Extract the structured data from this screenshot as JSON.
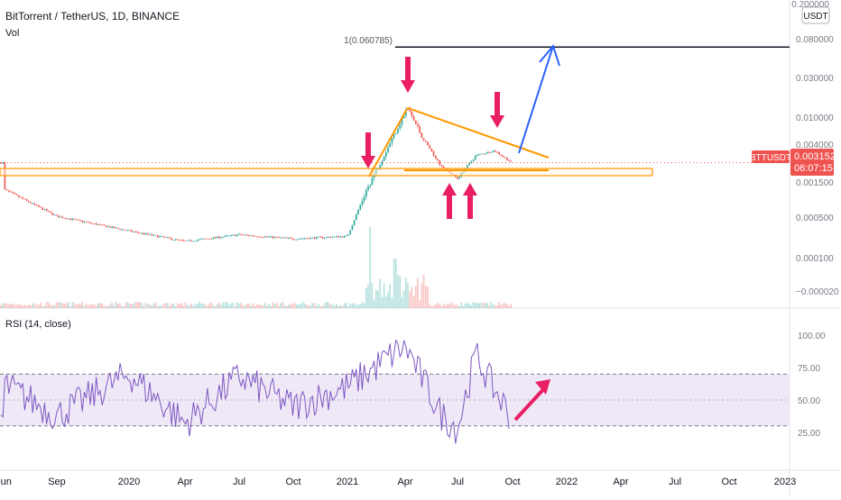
{
  "header": {
    "title": "BitTorrent / TetherUS, 1D, BINANCE",
    "vol_label": "Vol",
    "currency_badge": "USDT"
  },
  "price_axis": {
    "top_partial": "0.200000",
    "ticks": [
      "0.080000",
      "0.030000",
      "0.010000",
      "0.004000",
      "0.001500",
      "0.000500",
      "0.000100",
      "−0.000020"
    ]
  },
  "last_price_label": {
    "symbol": "BTTUSDT",
    "price": "0.003152",
    "countdown": "06:07:15",
    "color": "#ef5350"
  },
  "fib_label": "1(0.060785)",
  "rsi": {
    "label": "RSI (14, close)",
    "ticks": [
      "100.00",
      "75.00",
      "50.00",
      "25.00"
    ],
    "upper_band": 70,
    "lower_band": 30,
    "line_color": "#7e57c2",
    "band_fill": "#ede7f6"
  },
  "time_axis": {
    "labels": [
      "Jun",
      "Sep",
      "2020",
      "Apr",
      "Jul",
      "Oct",
      "2021",
      "Apr",
      "Jul",
      "Oct",
      "2022",
      "Apr",
      "Jul",
      "Oct",
      "2023"
    ]
  },
  "colors": {
    "up": "#26a69a",
    "down": "#ef5350",
    "trendline": "#ff9800",
    "arrow_pink": "#e91e63",
    "projection_arrow": "#2962ff",
    "target_line": "#131722"
  },
  "chart_data": [
    {
      "type": "line",
      "title": "BitTorrent / TetherUS, 1D, BINANCE",
      "scale": "log",
      "x": [
        "2019-06",
        "2019-09",
        "2020-01",
        "2020-04",
        "2020-07",
        "2020-10",
        "2021-01",
        "2021-02",
        "2021-04-05",
        "2021-05",
        "2021-06",
        "2021-07",
        "2021-08",
        "2021-09",
        "2021-09-30"
      ],
      "y": [
        0.0016,
        0.0008,
        0.00055,
        0.00042,
        0.0005,
        0.00045,
        0.00048,
        0.0016,
        0.0128,
        0.006,
        0.003,
        0.0021,
        0.0038,
        0.0043,
        0.003152
      ],
      "last_price": 0.003152,
      "target_level": 0.060785
    },
    {
      "type": "line",
      "title": "RSI (14, close)",
      "x": [
        "2019-06",
        "2019-09",
        "2020-01",
        "2020-04",
        "2020-07",
        "2020-10",
        "2021-01",
        "2021-04",
        "2021-06",
        "2021-07",
        "2021-08",
        "2021-09",
        "2021-10"
      ],
      "y": [
        62,
        38,
        70,
        32,
        68,
        45,
        60,
        92,
        40,
        28,
        85,
        58,
        36
      ],
      "ylim": [
        0,
        100
      ],
      "bands": [
        30,
        70
      ]
    }
  ]
}
